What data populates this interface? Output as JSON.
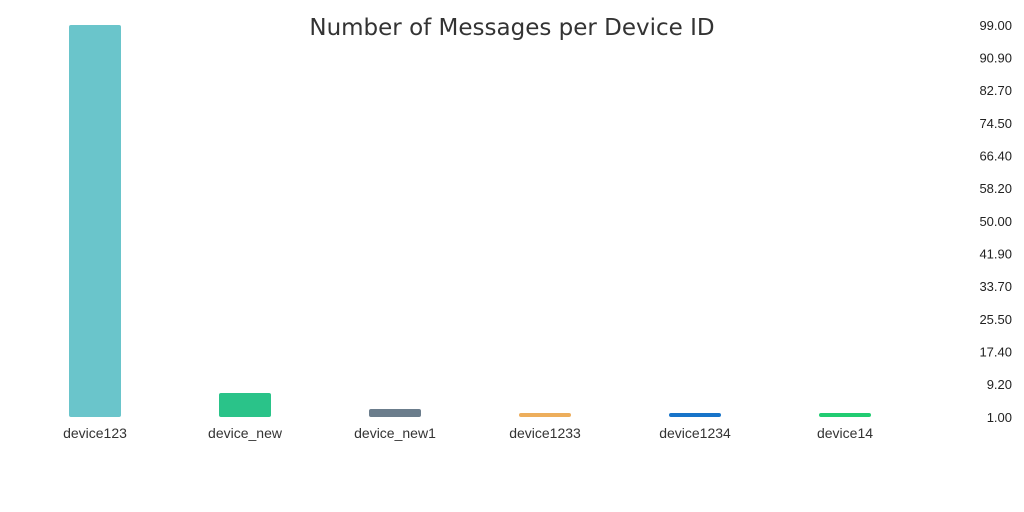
{
  "chart_data": {
    "type": "bar",
    "title": "Number of Messages per Device ID",
    "xlabel": "",
    "ylabel": "",
    "categories": [
      "device123",
      "device_new",
      "device_new1",
      "device1233",
      "device1234",
      "device14"
    ],
    "values": [
      99,
      7,
      3,
      2,
      1,
      1
    ],
    "colors": [
      "#6ac5cb",
      "#2ac389",
      "#6b7d8c",
      "#edae5c",
      "#1874c9",
      "#21cc72"
    ],
    "ylim": [
      1,
      99
    ],
    "y_ticks": [
      "99.00",
      "90.90",
      "82.70",
      "74.50",
      "66.40",
      "58.20",
      "50.00",
      "41.90",
      "33.70",
      "25.50",
      "17.40",
      "9.20",
      "1.00"
    ],
    "y_axis_side": "right",
    "grid": false,
    "legend": "none"
  }
}
